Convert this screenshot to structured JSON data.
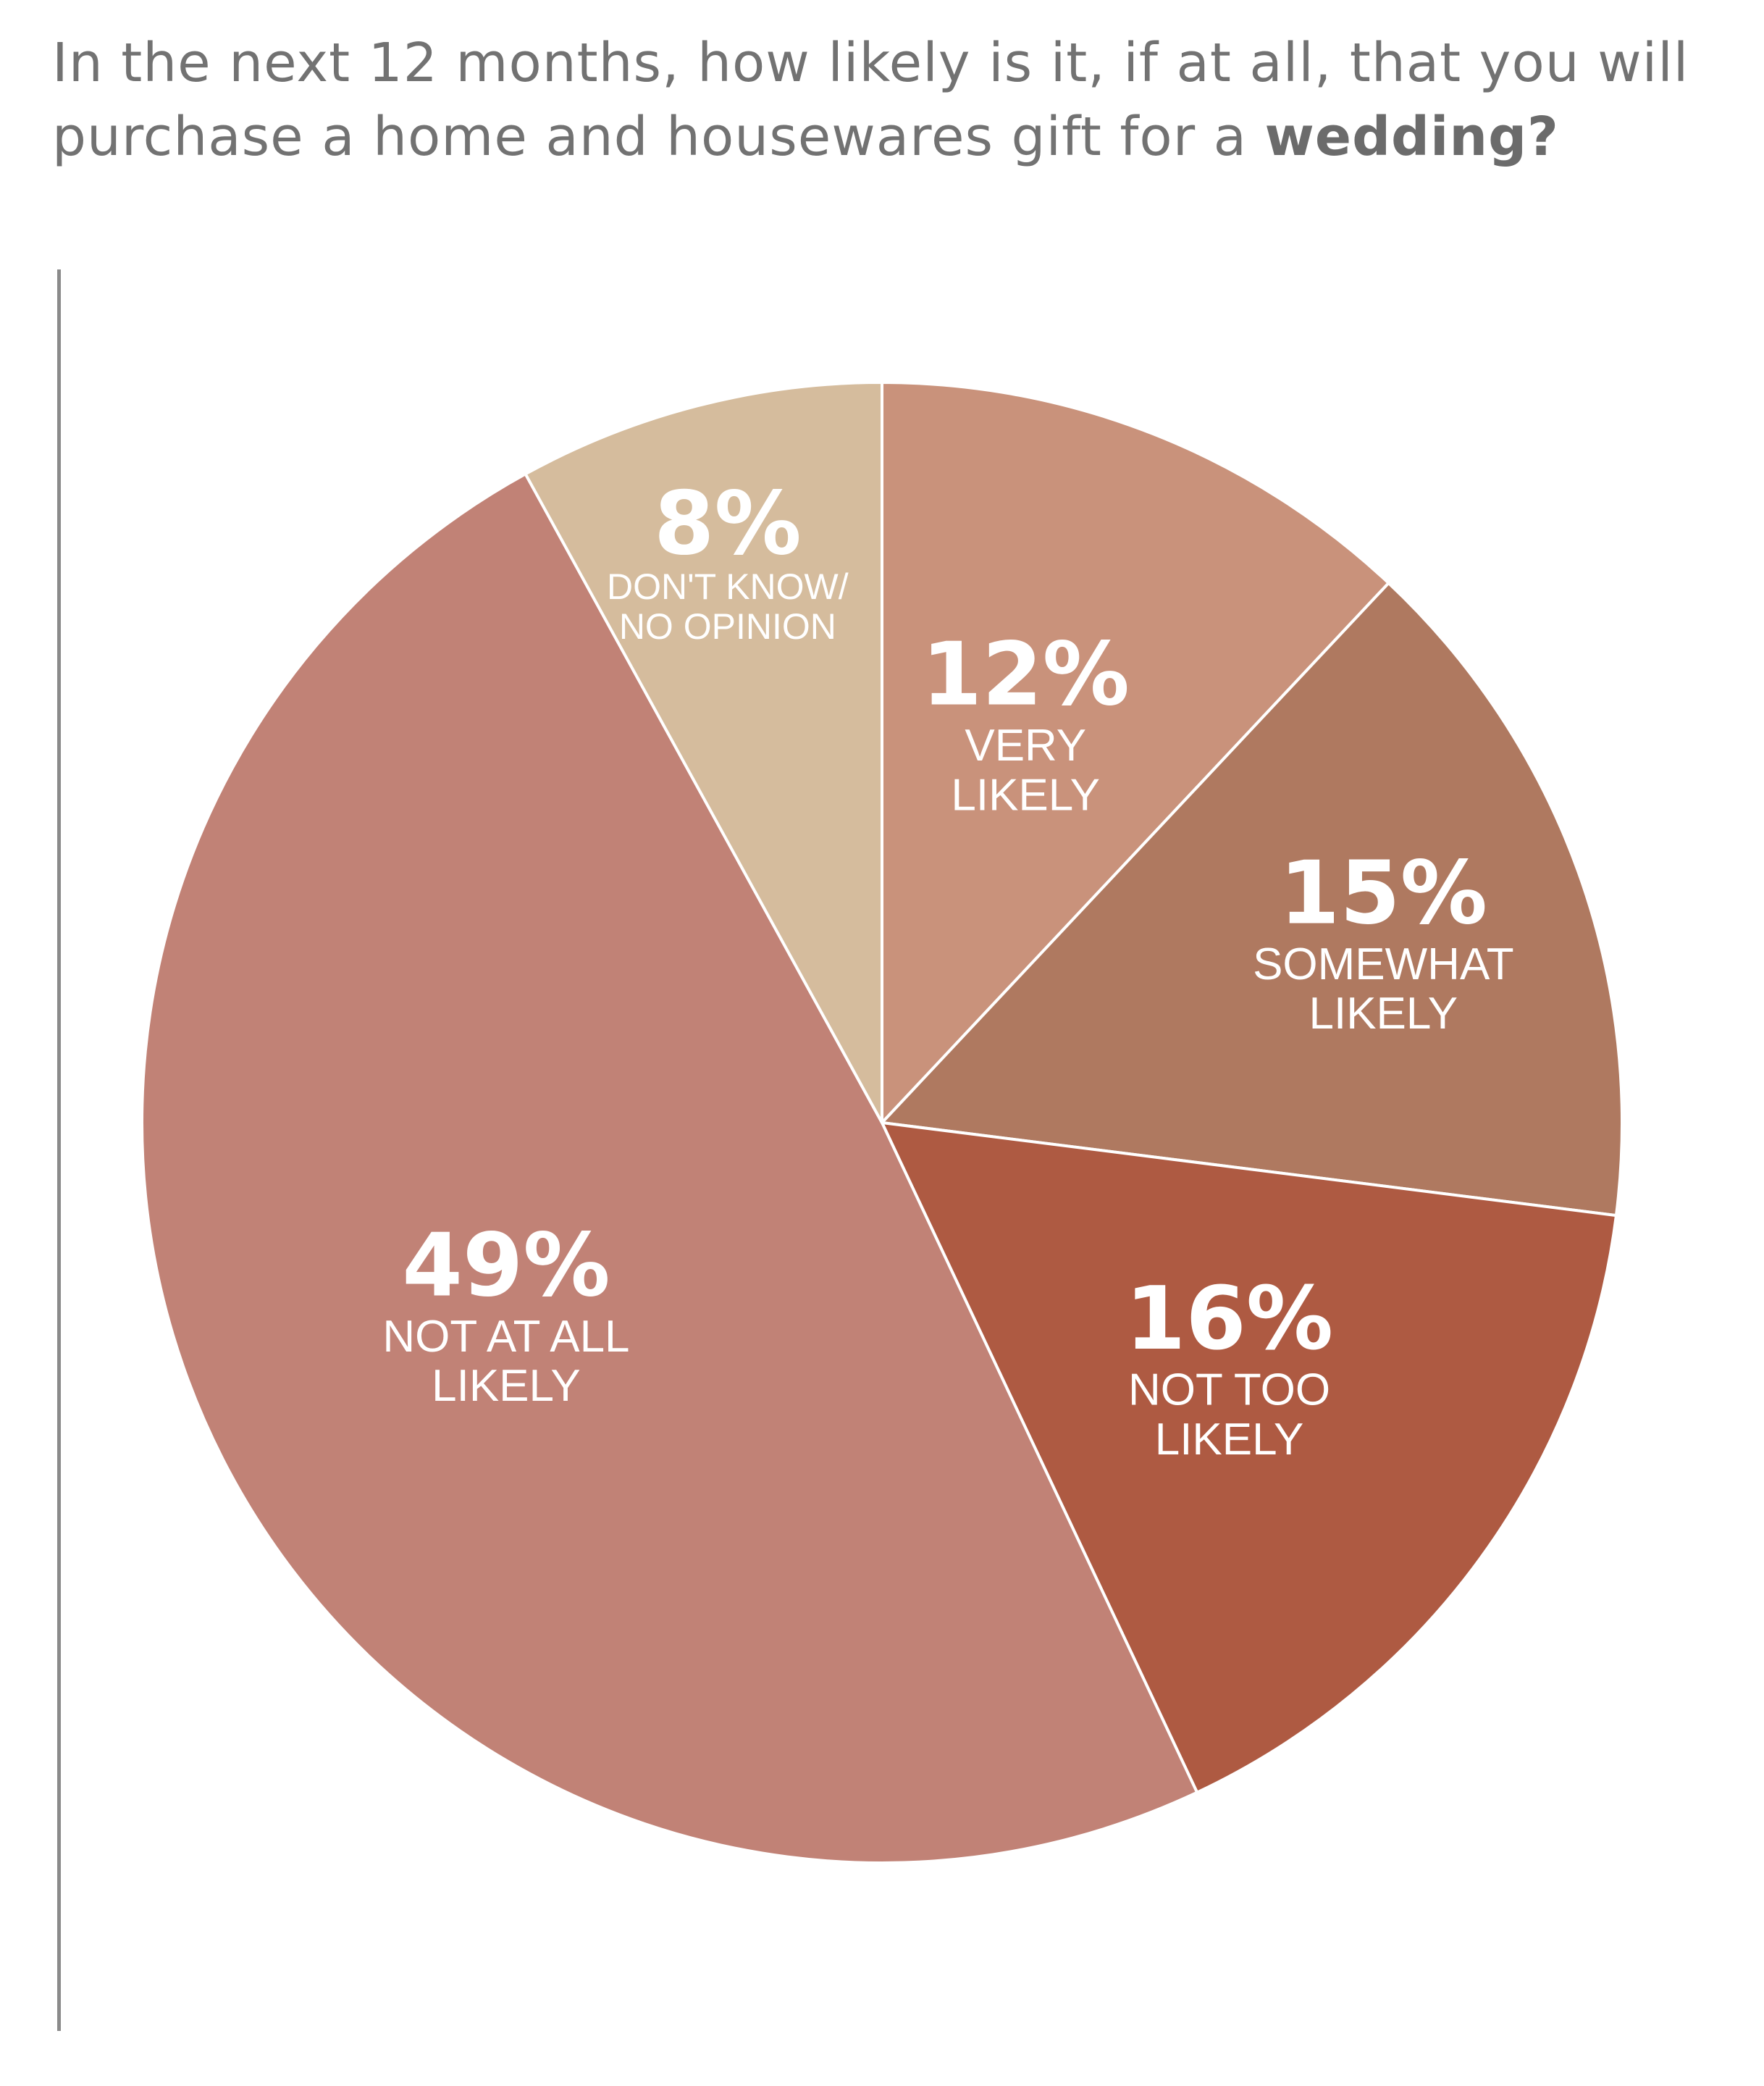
{
  "title": {
    "prefix": "In the next 12 months, how likely is it, if at all, that you will purchase a home and housewares gift for a ",
    "emphasis": "wedding?"
  },
  "chart_data": {
    "type": "pie",
    "title": "In the next 12 months, how likely is it, if at all, that you will purchase a home and housewares gift for a wedding?",
    "slices": [
      {
        "category": "VERY LIKELY",
        "label_lines": [
          "VERY",
          "LIKELY"
        ],
        "value": 12,
        "value_label": "12%",
        "color": "#C9927B"
      },
      {
        "category": "SOMEWHAT LIKELY",
        "label_lines": [
          "SOMEWHAT",
          "LIKELY"
        ],
        "value": 15,
        "value_label": "15%",
        "color": "#AF7960"
      },
      {
        "category": "NOT TOO LIKELY",
        "label_lines": [
          "NOT TOO",
          "LIKELY"
        ],
        "value": 16,
        "value_label": "16%",
        "color": "#AE5A42"
      },
      {
        "category": "NOT AT ALL LIKELY",
        "label_lines": [
          "NOT AT ALL",
          "LIKELY"
        ],
        "value": 49,
        "value_label": "49%",
        "color": "#C18276"
      },
      {
        "category": "DON'T KNOW/ NO OPINION",
        "label_lines": [
          "DON'T KNOW/",
          "NO OPINION"
        ],
        "value": 8,
        "value_label": "8%",
        "color": "#D5BC9D"
      }
    ]
  }
}
